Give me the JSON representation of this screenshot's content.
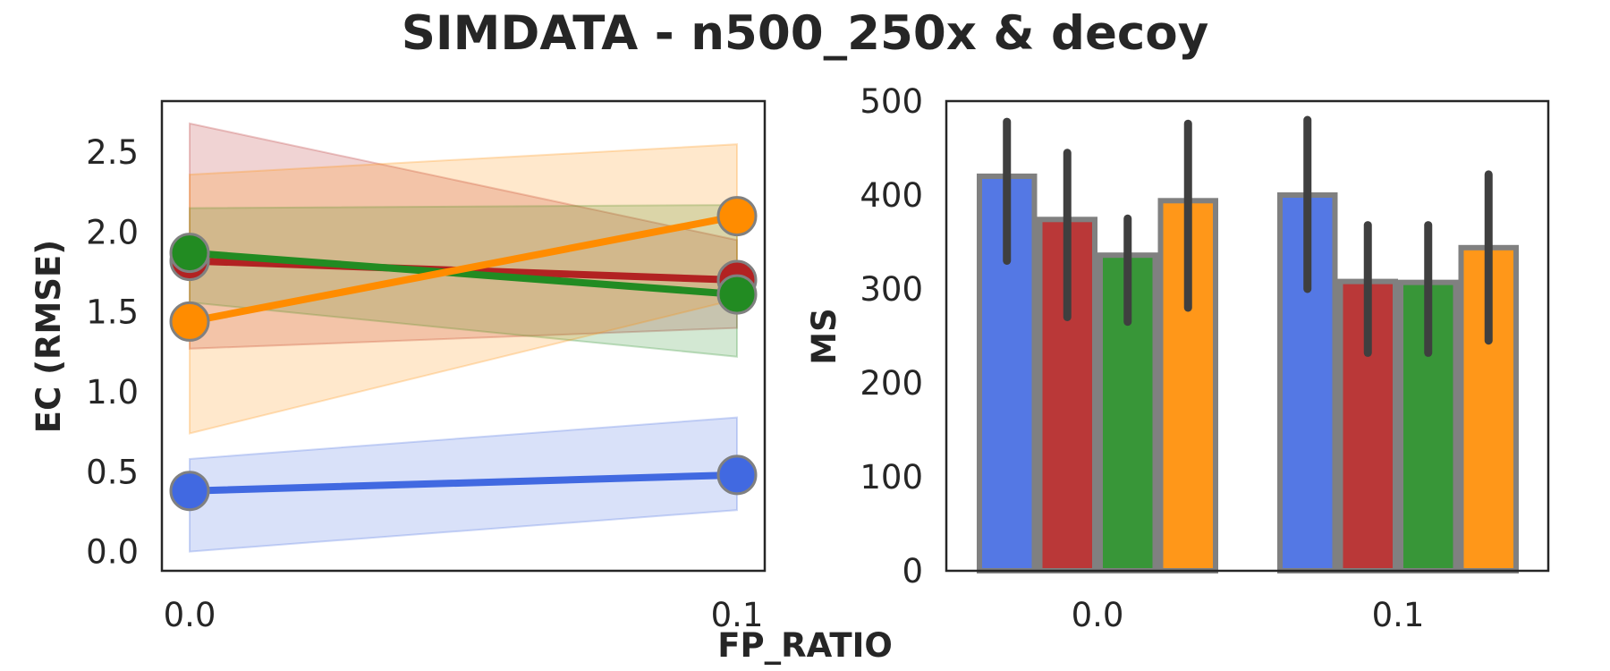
{
  "title": "SIMDATA - n500_250x & decoy",
  "shared_xlabel": "FP_RATIO",
  "colors": {
    "blue": "#4169e1",
    "red": "#b22222",
    "green": "#228b22",
    "orange": "#ff8c00",
    "bar_edge": "#808080",
    "errorbar": "#3f3f3f",
    "text": "#262626"
  },
  "chart_data": [
    {
      "type": "line",
      "xlabel": "",
      "ylabel": "EC (RMSE)",
      "x": [
        0.0,
        0.1
      ],
      "x_tick_labels": [
        "0.0",
        "0.1"
      ],
      "ylim": [
        -0.12,
        2.82
      ],
      "yticks": [
        0.0,
        0.5,
        1.0,
        1.5,
        2.0,
        2.5
      ],
      "y_tick_labels": [
        "0.0",
        "0.5",
        "1.0",
        "1.5",
        "2.0",
        "2.5"
      ],
      "grid": false,
      "series": [
        {
          "color": "blue",
          "values": [
            0.38,
            0.48
          ],
          "ci_low": [
            0.0,
            0.26
          ],
          "ci_high": [
            0.58,
            0.84
          ]
        },
        {
          "color": "red",
          "values": [
            1.82,
            1.7
          ],
          "ci_low": [
            1.27,
            1.4
          ],
          "ci_high": [
            2.68,
            1.95
          ]
        },
        {
          "color": "green",
          "values": [
            1.87,
            1.61
          ],
          "ci_low": [
            1.56,
            1.22
          ],
          "ci_high": [
            2.15,
            2.17
          ]
        },
        {
          "color": "orange",
          "values": [
            1.44,
            2.1
          ],
          "ci_low": [
            0.74,
            1.58
          ],
          "ci_high": [
            2.36,
            2.55
          ]
        }
      ]
    },
    {
      "type": "bar",
      "xlabel": "",
      "ylabel": "MS",
      "categories": [
        "0.0",
        "0.1"
      ],
      "ylim": [
        0,
        500
      ],
      "yticks": [
        0,
        100,
        200,
        300,
        400,
        500
      ],
      "y_tick_labels": [
        "0",
        "100",
        "200",
        "300",
        "400",
        "500"
      ],
      "grid": false,
      "series": [
        {
          "color": "blue",
          "values": [
            420,
            400
          ],
          "err_low": [
            330,
            300
          ],
          "err_high": [
            478,
            480
          ]
        },
        {
          "color": "red",
          "values": [
            374,
            308
          ],
          "err_low": [
            270,
            232
          ],
          "err_high": [
            445,
            368
          ]
        },
        {
          "color": "green",
          "values": [
            336,
            307
          ],
          "err_low": [
            265,
            232
          ],
          "err_high": [
            375,
            368
          ]
        },
        {
          "color": "orange",
          "values": [
            394,
            344
          ],
          "err_low": [
            280,
            245
          ],
          "err_high": [
            476,
            422
          ]
        }
      ]
    }
  ]
}
